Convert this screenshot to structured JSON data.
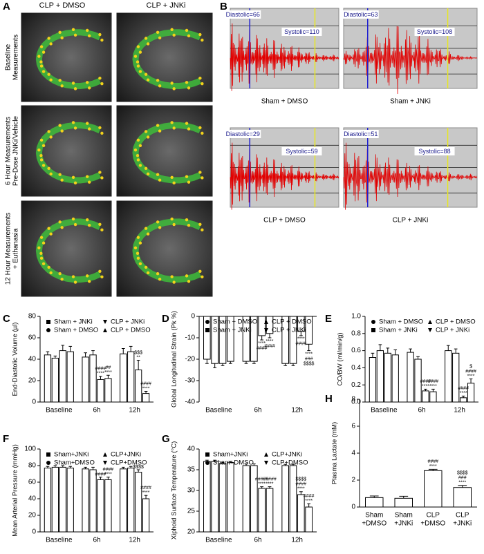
{
  "panel_a": {
    "letter": "A",
    "columns": [
      "CLP + DMSO",
      "CLP + JNKi"
    ],
    "rows": [
      [
        "Baseline",
        "Measurements"
      ],
      [
        "6 Hour Measurements",
        "Pre-Dose JNKi/Vehicle"
      ],
      [
        "12 Hour Measurements",
        "+ Euthanasia"
      ]
    ]
  },
  "panel_b": {
    "letter": "B",
    "traces": [
      {
        "label": "Sham + DMSO",
        "diastolic": "Diastolic=66",
        "systolic": "Systolic=110"
      },
      {
        "label": "Sham + JNKi",
        "diastolic": "Diastolic=63",
        "systolic": "Systolic=108"
      },
      {
        "label": "CLP + DMSO",
        "diastolic": "Diastolic=29",
        "systolic": "Systolic=59"
      },
      {
        "label": "CLP + JNKi",
        "diastolic": "Diastolic=51",
        "systolic": "Systolic=88"
      }
    ]
  },
  "chart_data": [
    {
      "type": "bar",
      "panel": "C",
      "y_label": "End-Diastolic Volume (µl)",
      "categories": [
        "Baseline",
        "6h",
        "12h"
      ],
      "ylim": [
        0,
        80
      ],
      "yticks": [
        0,
        20,
        40,
        60,
        80
      ],
      "bar_color": "#ffffff",
      "series": [
        {
          "name": "Sham + JNKi",
          "marker": "square",
          "values": [
            44,
            42,
            45
          ],
          "errors": [
            3,
            4,
            5
          ]
        },
        {
          "name": "Sham + DMSO",
          "marker": "circle",
          "values": [
            41,
            44,
            47
          ],
          "errors": [
            2,
            4,
            5
          ]
        },
        {
          "name": "CLP + JNKi",
          "marker": "triangle-down",
          "values": [
            48,
            21,
            30
          ],
          "errors": [
            5,
            3,
            9
          ]
        },
        {
          "name": "CLP + DMSO",
          "marker": "triangle-up",
          "values": [
            47,
            22,
            8
          ],
          "errors": [
            5,
            3,
            2
          ]
        }
      ],
      "annotations": [
        {
          "category": 1,
          "series": 2,
          "lines": [
            "####",
            "****"
          ]
        },
        {
          "category": 1,
          "series": 3,
          "lines": [
            "##",
            "****"
          ]
        },
        {
          "category": 2,
          "series": 2,
          "lines": [
            "$$$",
            "**"
          ]
        },
        {
          "category": 2,
          "series": 3,
          "lines": [
            "####",
            "****"
          ]
        }
      ]
    },
    {
      "type": "bar",
      "panel": "D",
      "y_label": "Global Longitudinal Strain (Pk %)",
      "categories": [
        "Baseline",
        "6h",
        "12h"
      ],
      "ylim": [
        -40,
        0
      ],
      "yticks": [
        0,
        -10,
        -20,
        -30,
        -40
      ],
      "bar_color": "#ffffff",
      "series": [
        {
          "name": "Sham + DMSO",
          "marker": "circle",
          "values": [
            -20,
            -21,
            -22
          ],
          "errors": [
            2,
            1,
            1
          ]
        },
        {
          "name": "Sham + JNKi",
          "marker": "square",
          "values": [
            -22,
            -21,
            -22
          ],
          "errors": [
            2,
            1,
            1
          ]
        },
        {
          "name": "CLP + DMSO",
          "marker": "triangle-up",
          "values": [
            -22,
            -9,
            -7
          ],
          "errors": [
            1,
            2,
            2
          ]
        },
        {
          "name": "CLP + JNKi",
          "marker": "triangle-down",
          "values": [
            -21,
            -8,
            -13
          ],
          "errors": [
            1,
            2,
            3
          ]
        }
      ],
      "annotations": [
        {
          "category": 1,
          "series": 2,
          "lines": [
            "****",
            "####"
          ]
        },
        {
          "category": 1,
          "series": 3,
          "lines": [
            "****",
            "####"
          ]
        },
        {
          "category": 2,
          "series": 2,
          "lines": [
            "****",
            "####"
          ]
        },
        {
          "category": 2,
          "series": 3,
          "lines": [
            "****",
            "###",
            "$$$$"
          ]
        }
      ]
    },
    {
      "type": "bar",
      "panel": "E",
      "y_label": "CO/BW (ml/min/g)",
      "categories": [
        "Baseline",
        "6h",
        "12h"
      ],
      "ylim": [
        0,
        1
      ],
      "yticks": [
        {
          "value": 0,
          "label": "0.0"
        },
        0.2,
        0.4,
        0.6,
        0.8,
        {
          "value": 1,
          "label": "1.0"
        }
      ],
      "bar_color": "#ffffff",
      "series": [
        {
          "name": "Sham + DMSO",
          "marker": "circle",
          "values": [
            0.52,
            0.58,
            0.6
          ],
          "errors": [
            0.05,
            0.04,
            0.06
          ]
        },
        {
          "name": "Sham + JNKi",
          "marker": "square",
          "values": [
            0.6,
            0.5,
            0.57
          ],
          "errors": [
            0.07,
            0.03,
            0.05
          ]
        },
        {
          "name": "CLP + DMSO",
          "marker": "triangle-up",
          "values": [
            0.57,
            0.13,
            0.05
          ],
          "errors": [
            0.06,
            0.02,
            0.02
          ]
        },
        {
          "name": "CLP + JNKi",
          "marker": "triangle-down",
          "values": [
            0.55,
            0.12,
            0.22
          ],
          "errors": [
            0.06,
            0.03,
            0.05
          ]
        }
      ],
      "annotations": [
        {
          "category": 1,
          "series": 2,
          "lines": [
            "####",
            "****"
          ]
        },
        {
          "category": 1,
          "series": 3,
          "lines": [
            "####",
            "****"
          ]
        },
        {
          "category": 2,
          "series": 2,
          "lines": [
            "####",
            "****"
          ]
        },
        {
          "category": 2,
          "series": 3,
          "lines": [
            "$",
            "####",
            "****"
          ]
        }
      ]
    },
    {
      "type": "bar",
      "panel": "F",
      "y_label": "Mean Arterial Pressure (mmHg)",
      "categories": [
        "Baseline",
        "6h",
        "12h"
      ],
      "ylim": [
        0,
        100
      ],
      "yticks": [
        0,
        20,
        40,
        60,
        80,
        100
      ],
      "bar_color": "#ffffff",
      "series": [
        {
          "name": "Sham+JNKi",
          "marker": "square",
          "values": [
            77,
            76,
            76
          ],
          "errors": [
            2,
            2,
            2
          ]
        },
        {
          "name": "Sham+DMSO",
          "marker": "circle",
          "values": [
            78,
            75,
            77
          ],
          "errors": [
            2,
            3,
            2
          ]
        },
        {
          "name": "CLP+JNKi",
          "marker": "triangle-up",
          "values": [
            78,
            63,
            72
          ],
          "errors": [
            2,
            3,
            3
          ]
        },
        {
          "name": "CLP+DMSO",
          "marker": "triangle-down",
          "values": [
            77,
            63,
            40
          ],
          "errors": [
            2,
            3,
            4
          ]
        }
      ],
      "annotations": [
        {
          "category": 1,
          "series": 2,
          "lines": [
            "####"
          ]
        },
        {
          "category": 1,
          "series": 3,
          "lines": [
            "####",
            "****"
          ]
        },
        {
          "category": 2,
          "series": 2,
          "lines": [
            "$$$$"
          ]
        },
        {
          "category": 2,
          "series": 3,
          "lines": [
            "####",
            "****"
          ]
        }
      ]
    },
    {
      "type": "bar",
      "panel": "G",
      "y_label": "Xiphoid Surface Temperature (°C)",
      "categories": [
        "Baseline",
        "6h",
        "12h"
      ],
      "ylim": [
        20,
        40
      ],
      "yticks": [
        20,
        25,
        30,
        35,
        40
      ],
      "bar_color": "#ffffff",
      "series": [
        {
          "name": "Sham+JNKi",
          "marker": "square",
          "values": [
            37,
            36,
            36
          ],
          "errors": [
            0.3,
            0.4,
            0.3
          ]
        },
        {
          "name": "Sham+DMSO",
          "marker": "circle",
          "values": [
            37,
            36,
            36
          ],
          "errors": [
            0.3,
            0.4,
            0.3
          ]
        },
        {
          "name": "CLP+JNKi",
          "marker": "triangle-up",
          "values": [
            36.5,
            30.5,
            29
          ],
          "errors": [
            0.3,
            0.4,
            0.7
          ]
        },
        {
          "name": "CLP+DMSO",
          "marker": "triangle-down",
          "values": [
            36.7,
            30.5,
            26
          ],
          "errors": [
            0.3,
            0.4,
            0.8
          ]
        }
      ],
      "annotations": [
        {
          "category": 1,
          "series": 2,
          "lines": [
            "#####",
            "****"
          ]
        },
        {
          "category": 1,
          "series": 3,
          "lines": [
            "#####",
            "****"
          ]
        },
        {
          "category": 2,
          "series": 2,
          "lines": [
            "$$$$",
            "####",
            "****"
          ]
        },
        {
          "category": 2,
          "series": 3,
          "lines": [
            "####",
            "****"
          ]
        }
      ]
    },
    {
      "type": "simple-bar",
      "panel": "H",
      "y_label": "Plasma Lactate (mM)",
      "categories": [
        [
          "Sham",
          "+DMSO"
        ],
        [
          "Sham",
          "+JNKi"
        ],
        [
          "CLP",
          "+DMSO"
        ],
        [
          "CLP",
          "+JNKi"
        ]
      ],
      "ylim": [
        0,
        8
      ],
      "yticks": [
        0,
        2,
        4,
        6,
        8
      ],
      "bar_color": "#ffffff",
      "values": [
        0.7,
        0.65,
        2.7,
        1.45
      ],
      "errors": [
        0.12,
        0.15,
        0.1,
        0.15
      ],
      "annotations": [
        {
          "category": 2,
          "lines": [
            "####",
            "****"
          ]
        },
        {
          "category": 3,
          "lines": [
            "$$$$",
            "###",
            "****"
          ]
        }
      ]
    }
  ]
}
